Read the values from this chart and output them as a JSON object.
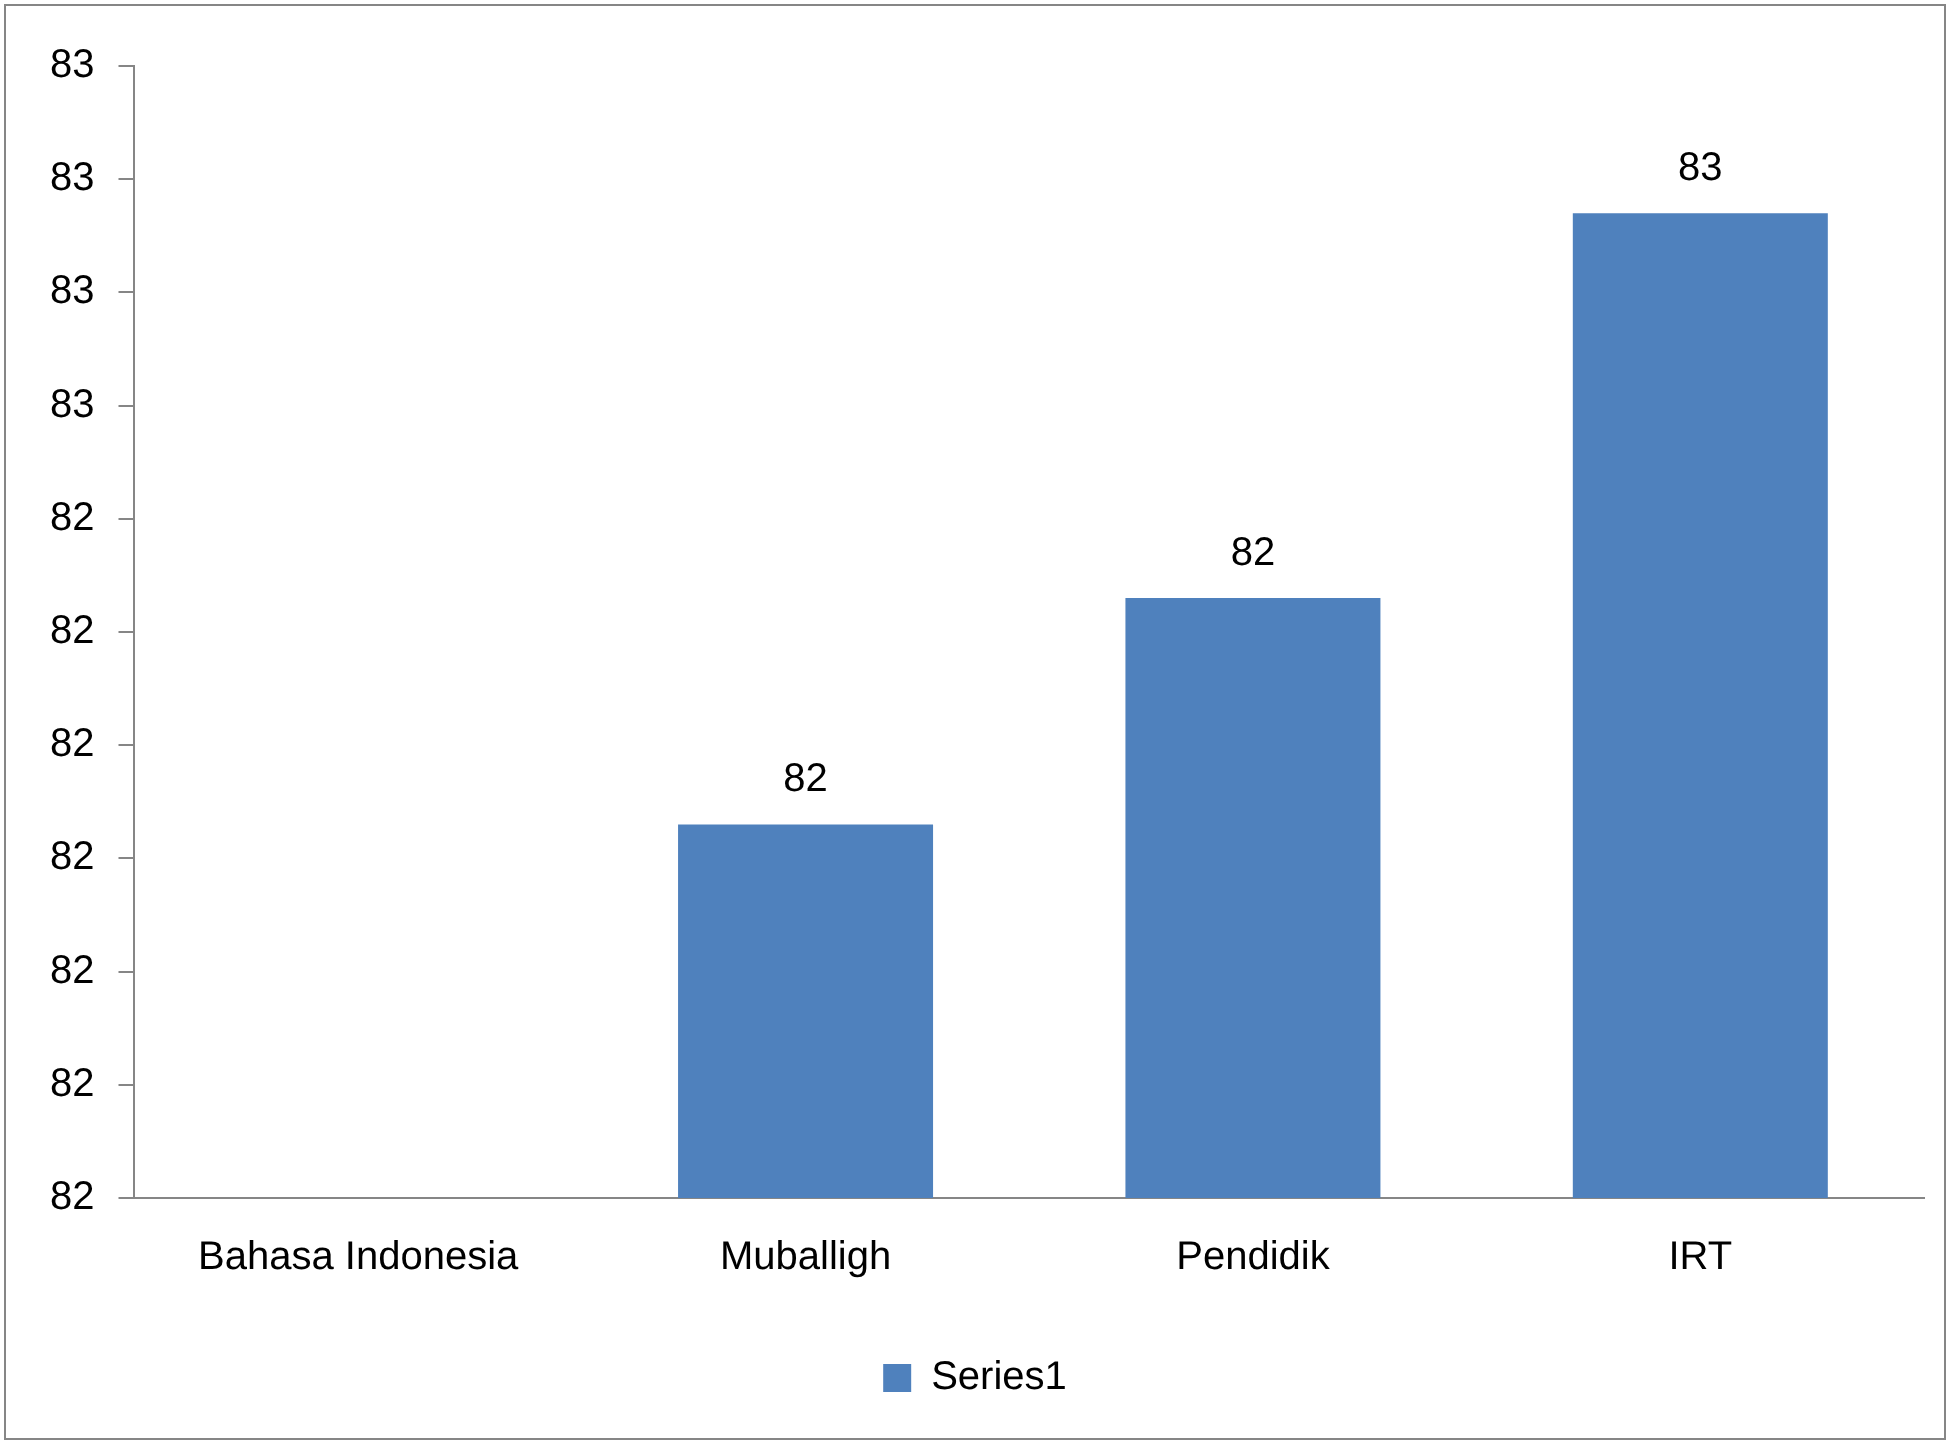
{
  "chart_data": {
    "type": "bar",
    "categories": [
      "Bahasa Indonesia",
      "Muballigh",
      "Pendidik",
      "IRT"
    ],
    "series": [
      {
        "name": "Series1",
        "color": "#4f81bd",
        "values": [
          null,
          82.13,
          82.33,
          82.67
        ],
        "value_labels": [
          null,
          "82",
          "82",
          "83"
        ]
      }
    ],
    "ylim": [
      81.8,
      82.8
    ],
    "yticks": [
      {
        "value": 81.8,
        "label": "82"
      },
      {
        "value": 81.9,
        "label": "82"
      },
      {
        "value": 82.0,
        "label": "82"
      },
      {
        "value": 82.1,
        "label": "82"
      },
      {
        "value": 82.2,
        "label": "82"
      },
      {
        "value": 82.3,
        "label": "82"
      },
      {
        "value": 82.4,
        "label": "82"
      },
      {
        "value": 82.5,
        "label": "83"
      },
      {
        "value": 82.6,
        "label": "83"
      },
      {
        "value": 82.7,
        "label": "83"
      },
      {
        "value": 82.8,
        "label": "83"
      }
    ],
    "grid": false,
    "legend": "bottom"
  }
}
